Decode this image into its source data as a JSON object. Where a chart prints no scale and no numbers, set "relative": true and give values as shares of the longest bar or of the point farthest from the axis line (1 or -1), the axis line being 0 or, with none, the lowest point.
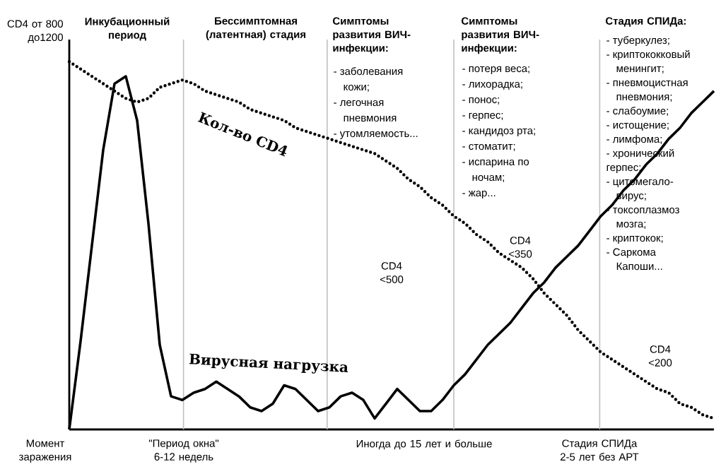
{
  "chart_data": {
    "type": "line",
    "relative": true,
    "grid": "x",
    "categories": [
      null,
      null,
      null,
      null,
      null,
      null,
      null,
      null,
      null,
      null,
      null,
      null,
      null,
      null,
      null,
      null,
      null,
      null,
      null,
      null,
      null,
      null,
      null,
      null,
      null,
      null,
      null,
      null,
      null,
      null,
      null,
      null,
      null,
      null,
      null,
      null,
      null,
      null,
      null,
      null,
      null,
      null,
      null,
      null,
      null,
      null,
      null,
      null,
      null,
      null,
      null,
      null,
      null,
      null,
      null,
      null,
      null,
      null
    ],
    "series": [
      {
        "name": "Кол-во CD4",
        "color": "#000000",
        "line_style": "dotted",
        "values": [
          1.0,
          0.98,
          0.96,
          0.94,
          0.92,
          0.9,
          0.89,
          0.9,
          0.93,
          0.94,
          0.95,
          0.94,
          0.92,
          0.91,
          0.9,
          0.89,
          0.87,
          0.86,
          0.85,
          0.84,
          0.82,
          0.81,
          0.8,
          0.79,
          0.78,
          0.77,
          0.76,
          0.75,
          0.73,
          0.71,
          0.68,
          0.66,
          0.63,
          0.61,
          0.58,
          0.56,
          0.53,
          0.51,
          0.48,
          0.46,
          0.44,
          0.41,
          0.37,
          0.34,
          0.31,
          0.27,
          0.24,
          0.21,
          0.19,
          0.17,
          0.15,
          0.13,
          0.11,
          0.1,
          0.07,
          0.06,
          0.04,
          0.03
        ]
      },
      {
        "name": "Вирусная нагрузка",
        "color": "#000000",
        "line_style": "solid",
        "values": [
          0,
          0.24,
          0.5,
          0.76,
          0.94,
          0.96,
          0.84,
          0.56,
          0.23,
          0.09,
          0.08,
          0.1,
          0.11,
          0.13,
          0.11,
          0.09,
          0.06,
          0.05,
          0.07,
          0.12,
          0.11,
          0.08,
          0.05,
          0.06,
          0.09,
          0.1,
          0.08,
          0.03,
          0.07,
          0.11,
          0.08,
          0.05,
          0.05,
          0.08,
          0.12,
          0.15,
          0.19,
          0.23,
          0.26,
          0.29,
          0.33,
          0.37,
          0.4,
          0.44,
          0.47,
          0.5,
          0.54,
          0.58,
          0.61,
          0.65,
          0.68,
          0.72,
          0.75,
          0.79,
          0.82,
          0.86,
          0.89,
          0.92
        ]
      }
    ],
    "annotations": [
      "CD4 от 800 до1200",
      "Инкубационный период",
      "Бессимптомная (латентная) стадия",
      "Симптомы развития ВИЧ-инфекции:",
      "- заболевания",
      "кожи;",
      "- легочная",
      "пневмония",
      "- утомляемость...",
      "Симптомы развития ВИЧ-инфекции:",
      "- потеря веса;",
      "- лихорадка;",
      "- понос;",
      "- герпес;",
      "- кандидоз рта;",
      "- стоматит;",
      "- испарина по",
      "ночам;",
      "- жар...",
      "Стадия СПИДа:",
      "- туберкулез;",
      "- криптококковый",
      "менингит;",
      "- пневмоцистная",
      "пневмония;",
      "- слабоумие;",
      "- истощение;",
      "- лимфома;",
      "- хронический",
      "герпес;",
      "- цитомегало-",
      "вирус;",
      "- токсоплазмоз",
      "мозга;",
      "- криптокок;",
      "- Саркома",
      "Капоши...",
      "CD4 <500",
      "CD4 <350",
      "CD4 <200",
      "Момент заражения",
      "\"Период окна\" 6-12 недель",
      "Иногда до 15 лет и больше",
      "Стадия СПИДа 2-5 лет без АРТ"
    ]
  }
}
